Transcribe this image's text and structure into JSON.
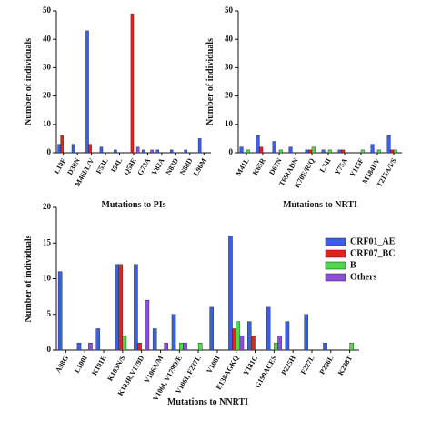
{
  "chart_data": [
    {
      "type": "bar",
      "y_label": "Number of individuals",
      "x_label": "Mutations to PIs",
      "categories": [
        "L10F",
        "D30N",
        "M46I/L/V",
        "F53L",
        "I54L",
        "Q58E",
        "G73A",
        "V82A",
        "N83D",
        "N88D",
        "L90M"
      ],
      "series": [
        {
          "name": "CRF01_AE",
          "color": "#3a5fe0",
          "values": [
            3,
            3,
            43,
            2,
            1,
            0,
            1,
            1,
            1,
            1,
            5
          ]
        },
        {
          "name": "CRF07_BC",
          "color": "#e2231a",
          "values": [
            6,
            0,
            3,
            0,
            0,
            49,
            0,
            0,
            0,
            0,
            0
          ]
        },
        {
          "name": "B",
          "color": "#4fd64f",
          "values": [
            0,
            0,
            0,
            0,
            0,
            0,
            0,
            0,
            0,
            0,
            0
          ]
        },
        {
          "name": "Others",
          "color": "#8a4fd8",
          "values": [
            0,
            0,
            0,
            0,
            0,
            2,
            1,
            0,
            0,
            0,
            0
          ]
        }
      ],
      "ylim": [
        0,
        50
      ],
      "yticks": [
        0,
        10,
        20,
        30,
        40,
        50
      ]
    },
    {
      "type": "bar",
      "y_label": "Number of individuals",
      "x_label": "Mutations to NRTI",
      "categories": [
        "M41L",
        "K65R",
        "D67N",
        "T69IADN",
        "K70E/R/Q",
        "L74I",
        "Y75A",
        "Y115F",
        "M184I/V",
        "T215A/I/S"
      ],
      "series": [
        {
          "name": "CRF01_AE",
          "color": "#3a5fe0",
          "values": [
            2,
            6,
            4,
            2,
            1,
            1,
            1,
            0,
            3,
            6
          ]
        },
        {
          "name": "CRF07_BC",
          "color": "#e2231a",
          "values": [
            0,
            2,
            0,
            0,
            1,
            0,
            1,
            0,
            0,
            1
          ]
        },
        {
          "name": "B",
          "color": "#4fd64f",
          "values": [
            1,
            0,
            1,
            0,
            2,
            1,
            0,
            1,
            1,
            1
          ]
        },
        {
          "name": "Others",
          "color": "#8a4fd8",
          "values": [
            0,
            0,
            0,
            0,
            0,
            0,
            0,
            0,
            0,
            0
          ]
        }
      ],
      "ylim": [
        0,
        50
      ],
      "yticks": [
        0,
        10,
        20,
        30,
        40,
        50
      ]
    },
    {
      "type": "bar",
      "y_label": "Number of individuals",
      "x_label": "Mutations to NNRTI",
      "legend": "right",
      "categories": [
        "A98G",
        "L100I",
        "K101E",
        "K103N/S",
        "K103R,V179D",
        "V106A/M",
        "V106I, V179D/E",
        "V106I, F227L",
        "V108I",
        "E138AGKQ",
        "Y181C",
        "G190ACES",
        "P225H",
        "F227L",
        "P236L",
        "K238T"
      ],
      "series": [
        {
          "name": "CRF01_AE",
          "color": "#3a5fe0",
          "values": [
            11,
            1,
            3,
            12,
            12,
            3,
            5,
            0,
            6,
            16,
            4,
            6,
            4,
            5,
            1,
            0
          ]
        },
        {
          "name": "CRF07_BC",
          "color": "#e2231a",
          "values": [
            0,
            0,
            0,
            12,
            1,
            0,
            0,
            0,
            0,
            3,
            2,
            0,
            0,
            0,
            0,
            0
          ]
        },
        {
          "name": "B",
          "color": "#4fd64f",
          "values": [
            0,
            0,
            0,
            2,
            0,
            0,
            1,
            1,
            0,
            4,
            0,
            1,
            0,
            0,
            0,
            1
          ]
        },
        {
          "name": "Others",
          "color": "#8a4fd8",
          "values": [
            0,
            1,
            0,
            0,
            7,
            1,
            1,
            0,
            0,
            2,
            0,
            2,
            0,
            0,
            0,
            0
          ]
        }
      ],
      "ylim": [
        0,
        20
      ],
      "yticks": [
        0,
        5,
        10,
        15,
        20
      ]
    }
  ]
}
